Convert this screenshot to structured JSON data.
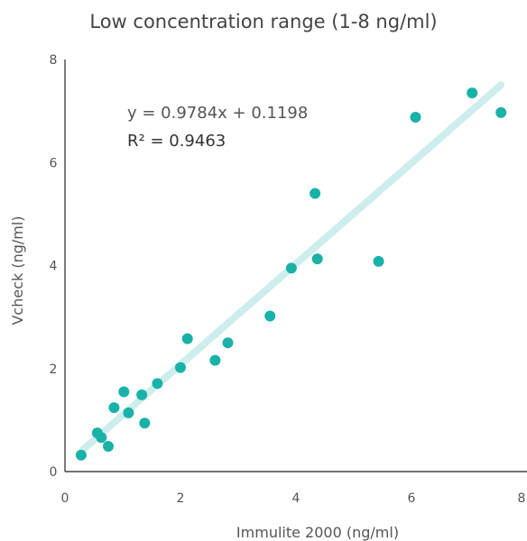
{
  "chart_data": {
    "type": "scatter",
    "title": "Low concentration range (1-8 ng/ml)",
    "xlabel": "Immulite 2000 (ng/ml)",
    "ylabel": "Vcheck (ng/ml)",
    "xlim": [
      0,
      8
    ],
    "ylim": [
      0,
      8
    ],
    "xticks": [
      "0",
      "2",
      "4",
      "6",
      "8"
    ],
    "yticks": [
      "0",
      "2",
      "4",
      "6",
      "8"
    ],
    "grid": false,
    "colors": {
      "points": "#19B2A8",
      "trendline": "#CDEEEC",
      "axis": "#444444"
    },
    "trendline": {
      "slope": 0.9784,
      "intercept": 0.1198,
      "x_range": [
        0.3,
        7.55
      ]
    },
    "equation": "y = 0.9784x + 0.1198",
    "r2": "R² = 0.9463",
    "points": [
      {
        "x": 0.28,
        "y": 0.32
      },
      {
        "x": 0.56,
        "y": 0.75
      },
      {
        "x": 0.63,
        "y": 0.66
      },
      {
        "x": 0.75,
        "y": 0.49
      },
      {
        "x": 0.85,
        "y": 1.24
      },
      {
        "x": 1.02,
        "y": 1.55
      },
      {
        "x": 1.1,
        "y": 1.14
      },
      {
        "x": 1.33,
        "y": 1.49
      },
      {
        "x": 1.38,
        "y": 0.94
      },
      {
        "x": 1.6,
        "y": 1.71
      },
      {
        "x": 2.0,
        "y": 2.02
      },
      {
        "x": 2.12,
        "y": 2.58
      },
      {
        "x": 2.6,
        "y": 2.16
      },
      {
        "x": 2.82,
        "y": 2.5
      },
      {
        "x": 3.55,
        "y": 3.02
      },
      {
        "x": 3.92,
        "y": 3.95
      },
      {
        "x": 4.33,
        "y": 5.4
      },
      {
        "x": 4.37,
        "y": 4.13
      },
      {
        "x": 5.43,
        "y": 4.08
      },
      {
        "x": 6.07,
        "y": 6.88
      },
      {
        "x": 7.05,
        "y": 7.35
      },
      {
        "x": 7.55,
        "y": 6.97
      }
    ]
  }
}
